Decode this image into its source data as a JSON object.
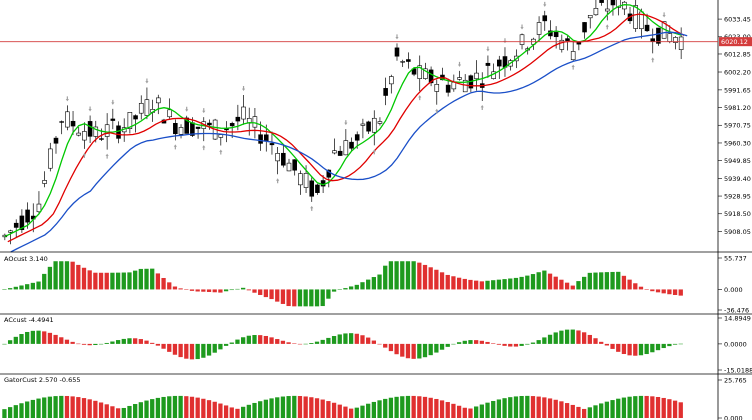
{
  "chart_data": [
    {
      "type": "candlestick",
      "panel": "price",
      "y_ticks": [
        "6033.45",
        "6023.00",
        "6012.85",
        "6002.20",
        "5991.65",
        "5981.20",
        "5970.75",
        "5960.30",
        "5949.85",
        "5939.40",
        "5928.95",
        "5918.50",
        "5908.05"
      ],
      "current_price_label": "6020.12",
      "ylim": [
        5903.0,
        6040.0
      ],
      "current_price": 6020.12,
      "series": [
        {
          "color": "#00c800"
        },
        {
          "color": "#e00000"
        },
        {
          "color": "#1a4fc8"
        }
      ]
    },
    {
      "type": "bar",
      "panel": "oscillator",
      "title": "AOcust 3.140",
      "y_ticks": [
        "55.737",
        "0.000",
        "-36.476"
      ],
      "ylim": [
        -36.476,
        55.737
      ]
    },
    {
      "type": "bar",
      "panel": "oscillator",
      "title": "ACcust -4.4941",
      "y_ticks": [
        "14.8949",
        "0.0000",
        "-15.0188"
      ],
      "ylim": [
        -15.0188,
        14.8949
      ]
    },
    {
      "type": "bar",
      "panel": "gator",
      "title": "GatorCust 2.570 -0.655",
      "y_ticks": [
        "25.765",
        "0.000"
      ],
      "ylim": [
        0.0,
        25.765
      ]
    }
  ],
  "colors": {
    "up": "#1e9a1e",
    "down": "#e03030",
    "candle": "#000000",
    "priceline": "#d43c3c",
    "fractal": "#a0a0a0"
  }
}
